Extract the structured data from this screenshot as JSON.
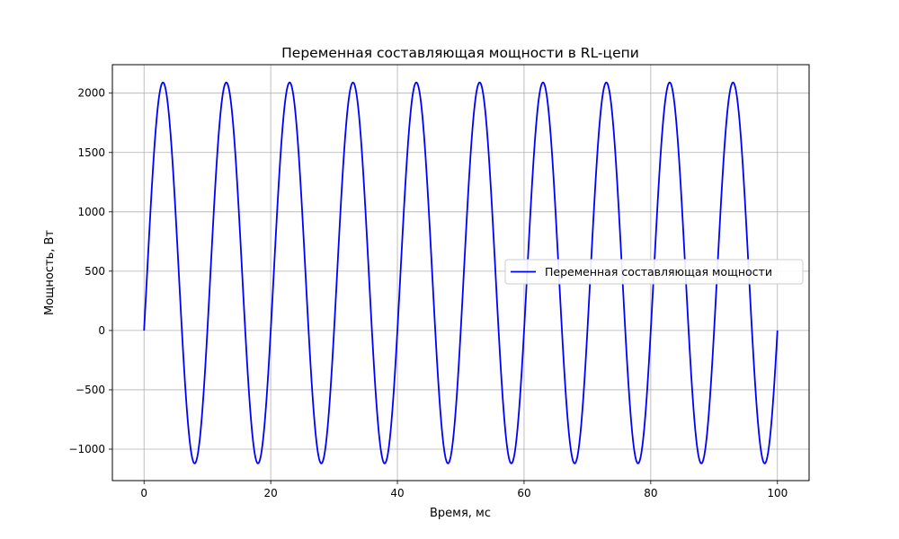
{
  "chart_data": {
    "type": "line",
    "title": "Переменная составляющая мощности в RL-цепи",
    "xlabel": "Время, мс",
    "ylabel": "Мощность, Вт",
    "xlim": [
      -5,
      105
    ],
    "ylim": [
      -1265,
      2240
    ],
    "xticks": [
      0,
      20,
      40,
      60,
      80,
      100
    ],
    "xtick_labels": [
      "0",
      "20",
      "40",
      "60",
      "80",
      "100"
    ],
    "yticks": [
      -1000,
      -500,
      0,
      500,
      1000,
      1500,
      2000
    ],
    "ytick_labels": [
      "−1000",
      "−500",
      "0",
      "500",
      "1000",
      "1500",
      "2000"
    ],
    "grid": true,
    "legend_position": "center-right",
    "series": [
      {
        "name": "Переменная составляющая мощности",
        "color": "#0000ff",
        "function": "p(t) = 485 + 1605 * sin(2*pi*t/10 - 0.305)",
        "x_range": [
          0,
          100
        ],
        "peak_value": 2090,
        "trough_value": -1120,
        "period_ms": 10
      }
    ]
  }
}
